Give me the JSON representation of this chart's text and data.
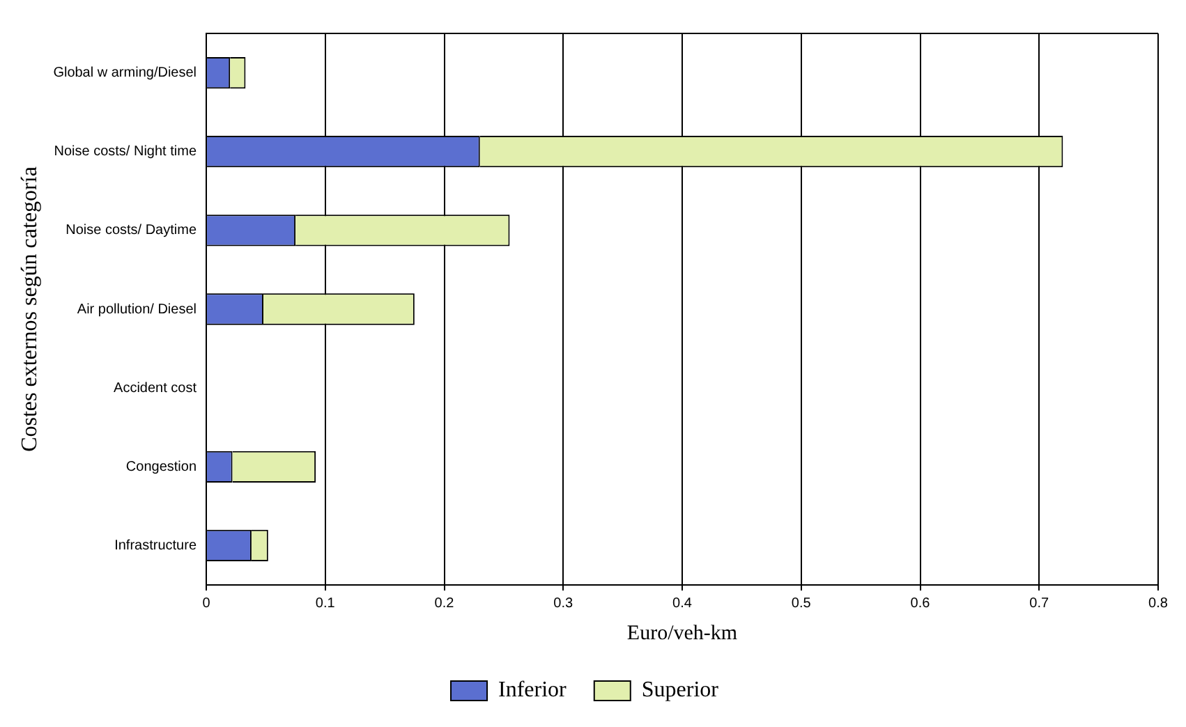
{
  "chart_data": {
    "type": "bar",
    "orientation": "horizontal",
    "stacked": true,
    "categories": [
      "Global w arming/Diesel",
      "Noise costs/ Night time",
      "Noise costs/ Daytime",
      "Air pollution/ Diesel",
      "Accident cost",
      "Congestion",
      "Infrastructure"
    ],
    "series": [
      {
        "name": "Inferior",
        "color": "#5b6fd0",
        "values": [
          0.02,
          0.23,
          0.075,
          0.048,
          null,
          0.022,
          0.038
        ]
      },
      {
        "name": "Superior",
        "color": "#e2efae",
        "values": [
          0.013,
          0.49,
          0.18,
          0.127,
          null,
          0.07,
          0.014
        ]
      }
    ],
    "xlabel": "Euro/veh-km",
    "ylabel": "Costes externos según categoría",
    "xlim": [
      0,
      0.8
    ],
    "xticks": [
      0,
      0.1,
      0.2,
      0.3,
      0.4,
      0.5,
      0.6,
      0.7,
      0.8
    ],
    "grid": "x",
    "legend": "bottom"
  }
}
